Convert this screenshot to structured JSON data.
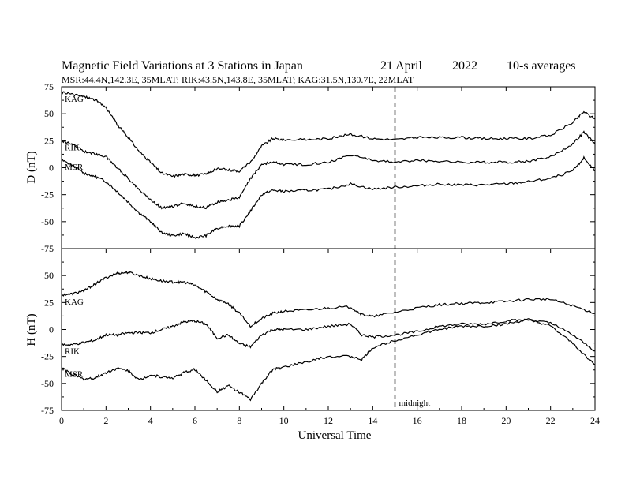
{
  "header": {
    "title": "Magnetic Field Variations at 3 Stations in Japan",
    "date_day": "21 April",
    "date_year": "2022",
    "averaging": "10-s averages",
    "stations_info": "MSR:44.4N,142.3E, 35MLAT;   RIK:43.5N,143.8E, 35MLAT;   KAG:31.5N,130.7E, 22MLAT"
  },
  "chart_data": {
    "type": "line",
    "xlabel": "Universal Time",
    "xlim": [
      0,
      24
    ],
    "x_ticks": [
      0,
      2,
      4,
      6,
      8,
      10,
      12,
      14,
      16,
      18,
      20,
      22,
      24
    ],
    "midnight_marker": {
      "x": 15,
      "label": "midnight",
      "style": "dashed"
    },
    "panels": [
      {
        "id": "D",
        "ylabel": "D (nT)",
        "ylim": [
          -75,
          75
        ],
        "y_ticks": [
          75,
          50,
          25,
          0,
          -25,
          -50,
          -75
        ],
        "series": [
          {
            "name": "KAG",
            "points": [
              [
                0,
                70
              ],
              [
                0.5,
                68
              ],
              [
                1,
                66
              ],
              [
                1.5,
                63
              ],
              [
                2,
                56
              ],
              [
                2.5,
                40
              ],
              [
                3,
                28
              ],
              [
                3.5,
                15
              ],
              [
                4,
                5
              ],
              [
                4.5,
                -5
              ],
              [
                5,
                -8
              ],
              [
                5.5,
                -6
              ],
              [
                6,
                -7
              ],
              [
                6.5,
                -6
              ],
              [
                7,
                -1
              ],
              [
                7.5,
                -2
              ],
              [
                8,
                -3
              ],
              [
                8.5,
                5
              ],
              [
                9,
                20
              ],
              [
                9.5,
                27
              ],
              [
                10,
                26
              ],
              [
                11,
                26
              ],
              [
                12,
                27
              ],
              [
                13,
                31
              ],
              [
                14,
                27
              ],
              [
                15,
                26
              ],
              [
                16,
                28
              ],
              [
                17,
                28
              ],
              [
                18,
                28
              ],
              [
                19,
                27
              ],
              [
                20,
                27
              ],
              [
                21,
                27
              ],
              [
                22,
                30
              ],
              [
                23,
                42
              ],
              [
                23.5,
                52
              ],
              [
                24,
                45
              ]
            ]
          },
          {
            "name": "RIK",
            "points": [
              [
                0,
                25
              ],
              [
                0.5,
                22
              ],
              [
                1,
                15
              ],
              [
                1.5,
                13
              ],
              [
                2,
                10
              ],
              [
                2.5,
                0
              ],
              [
                3,
                -10
              ],
              [
                3.5,
                -20
              ],
              [
                4,
                -30
              ],
              [
                4.5,
                -37
              ],
              [
                5,
                -36
              ],
              [
                5.5,
                -33
              ],
              [
                6,
                -36
              ],
              [
                6.5,
                -37
              ],
              [
                7,
                -32
              ],
              [
                7.5,
                -30
              ],
              [
                8,
                -28
              ],
              [
                8.5,
                -10
              ],
              [
                9,
                3
              ],
              [
                9.5,
                5
              ],
              [
                10,
                3
              ],
              [
                11,
                3
              ],
              [
                12,
                5
              ],
              [
                13,
                12
              ],
              [
                14,
                7
              ],
              [
                15,
                5
              ],
              [
                16,
                7
              ],
              [
                17,
                6
              ],
              [
                18,
                5
              ],
              [
                19,
                5
              ],
              [
                20,
                5
              ],
              [
                21,
                6
              ],
              [
                22,
                10
              ],
              [
                23,
                22
              ],
              [
                23.5,
                33
              ],
              [
                24,
                22
              ]
            ]
          },
          {
            "name": "MSR",
            "points": [
              [
                0,
                7
              ],
              [
                0.5,
                2
              ],
              [
                1,
                -5
              ],
              [
                1.5,
                -8
              ],
              [
                2,
                -13
              ],
              [
                2.5,
                -22
              ],
              [
                3,
                -32
              ],
              [
                3.5,
                -42
              ],
              [
                4,
                -50
              ],
              [
                4.5,
                -60
              ],
              [
                5,
                -63
              ],
              [
                5.5,
                -61
              ],
              [
                6,
                -65
              ],
              [
                6.5,
                -63
              ],
              [
                7,
                -56
              ],
              [
                7.5,
                -54
              ],
              [
                8,
                -54
              ],
              [
                8.5,
                -40
              ],
              [
                9,
                -25
              ],
              [
                9.5,
                -21
              ],
              [
                10,
                -22
              ],
              [
                11,
                -21
              ],
              [
                12,
                -20
              ],
              [
                13,
                -15
              ],
              [
                14,
                -20
              ],
              [
                15,
                -18
              ],
              [
                16,
                -17
              ],
              [
                17,
                -15
              ],
              [
                18,
                -16
              ],
              [
                19,
                -16
              ],
              [
                20,
                -15
              ],
              [
                21,
                -13
              ],
              [
                22,
                -10
              ],
              [
                23,
                -3
              ],
              [
                23.5,
                9
              ],
              [
                24,
                -3
              ]
            ]
          }
        ]
      },
      {
        "id": "H",
        "ylabel": "H (nT)",
        "ylim": [
          -75,
          75
        ],
        "y_ticks": [
          75,
          50,
          25,
          0,
          -25,
          -50,
          -75
        ],
        "series": [
          {
            "name": "KAG",
            "points": [
              [
                0,
                32
              ],
              [
                0.5,
                33
              ],
              [
                1,
                36
              ],
              [
                1.5,
                42
              ],
              [
                2,
                48
              ],
              [
                2.5,
                52
              ],
              [
                3,
                53
              ],
              [
                3.5,
                50
              ],
              [
                4,
                47
              ],
              [
                4.5,
                45
              ],
              [
                5,
                44
              ],
              [
                5.5,
                44
              ],
              [
                6,
                41
              ],
              [
                6.5,
                35
              ],
              [
                7,
                28
              ],
              [
                7.5,
                24
              ],
              [
                8,
                15
              ],
              [
                8.5,
                3
              ],
              [
                9,
                10
              ],
              [
                9.5,
                15
              ],
              [
                10,
                17
              ],
              [
                11,
                18
              ],
              [
                12,
                20
              ],
              [
                13,
                21
              ],
              [
                13.5,
                14
              ],
              [
                14,
                12
              ],
              [
                15,
                16
              ],
              [
                16,
                20
              ],
              [
                17,
                23
              ],
              [
                18,
                24
              ],
              [
                19,
                25
              ],
              [
                20,
                26
              ],
              [
                21,
                28
              ],
              [
                22,
                28
              ],
              [
                23,
                22
              ],
              [
                24,
                15
              ]
            ]
          },
          {
            "name": "RIK",
            "points": [
              [
                0,
                -14
              ],
              [
                0.5,
                -14
              ],
              [
                1,
                -12
              ],
              [
                1.5,
                -10
              ],
              [
                2,
                -5
              ],
              [
                2.5,
                -5
              ],
              [
                3,
                -3
              ],
              [
                3.5,
                -3
              ],
              [
                4,
                -3
              ],
              [
                4.5,
                0
              ],
              [
                5,
                3
              ],
              [
                5.5,
                7
              ],
              [
                6,
                8
              ],
              [
                6.5,
                5
              ],
              [
                7,
                -8
              ],
              [
                7.5,
                -5
              ],
              [
                8,
                -13
              ],
              [
                8.5,
                -16
              ],
              [
                9,
                -5
              ],
              [
                9.5,
                0
              ],
              [
                10,
                0
              ],
              [
                11,
                0
              ],
              [
                12,
                3
              ],
              [
                13,
                5
              ],
              [
                13.5,
                -5
              ],
              [
                14,
                -7
              ],
              [
                15,
                -5
              ],
              [
                16,
                -2
              ],
              [
                17,
                3
              ],
              [
                18,
                5
              ],
              [
                19,
                5
              ],
              [
                20,
                8
              ],
              [
                21,
                9
              ],
              [
                22,
                6
              ],
              [
                23,
                -5
              ],
              [
                24,
                -20
              ]
            ]
          },
          {
            "name": "MSR",
            "points": [
              [
                0,
                -35
              ],
              [
                0.5,
                -42
              ],
              [
                1,
                -46
              ],
              [
                1.5,
                -45
              ],
              [
                2,
                -40
              ],
              [
                2.5,
                -36
              ],
              [
                3,
                -38
              ],
              [
                3.5,
                -47
              ],
              [
                4,
                -42
              ],
              [
                4.5,
                -44
              ],
              [
                5,
                -45
              ],
              [
                5.5,
                -40
              ],
              [
                6,
                -37
              ],
              [
                6.5,
                -47
              ],
              [
                7,
                -58
              ],
              [
                7.5,
                -52
              ],
              [
                8,
                -58
              ],
              [
                8.5,
                -65
              ],
              [
                9,
                -50
              ],
              [
                9.5,
                -37
              ],
              [
                10,
                -35
              ],
              [
                11,
                -30
              ],
              [
                12,
                -25
              ],
              [
                13,
                -25
              ],
              [
                13.5,
                -28
              ],
              [
                14,
                -17
              ],
              [
                15,
                -10
              ],
              [
                16,
                -5
              ],
              [
                17,
                0
              ],
              [
                18,
                3
              ],
              [
                19,
                3
              ],
              [
                20,
                5
              ],
              [
                21,
                9
              ],
              [
                22,
                3
              ],
              [
                23,
                -13
              ],
              [
                24,
                -33
              ]
            ]
          }
        ]
      }
    ]
  }
}
